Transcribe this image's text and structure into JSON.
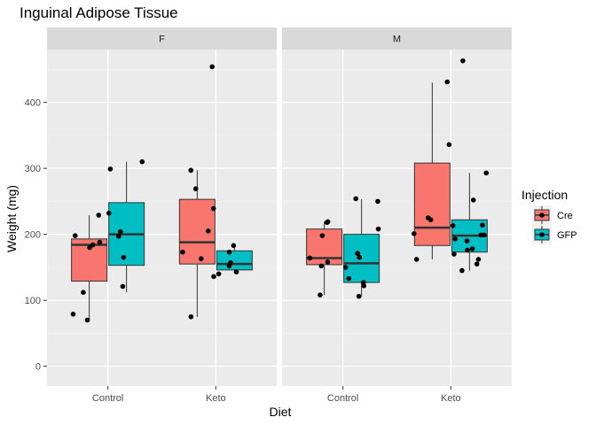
{
  "chart_data": {
    "type": "boxplot",
    "title": "Inguinal Adipose Tissue",
    "xlabel": "Diet",
    "ylabel": "Weight (mg)",
    "ylim": [
      -30,
      480
    ],
    "yticks": [
      0,
      100,
      200,
      300,
      400
    ],
    "categories": [
      "Control",
      "Keto"
    ],
    "facets": [
      "F",
      "M"
    ],
    "legend": {
      "title": "Injection",
      "position": "right"
    },
    "series": [
      {
        "name": "Cre",
        "color": "#F8766D"
      },
      {
        "name": "GFP",
        "color": "#00BFC4"
      }
    ],
    "boxes": [
      {
        "facet": "F",
        "diet": "Control",
        "injection": "Cre",
        "q1": 129,
        "median": 184,
        "q3": 193,
        "whisker_low": 70,
        "whisker_high": 229,
        "points": [
          229,
          198,
          184,
          188,
          180,
          112,
          79,
          70
        ]
      },
      {
        "facet": "F",
        "diet": "Control",
        "injection": "GFP",
        "q1": 153,
        "median": 200,
        "q3": 248,
        "whisker_low": 112,
        "whisker_high": 310,
        "points": [
          310,
          299,
          232,
          204,
          197,
          165,
          121
        ]
      },
      {
        "facet": "F",
        "diet": "Keto",
        "injection": "Cre",
        "q1": 155,
        "median": 188,
        "q3": 253,
        "whisker_low": 75,
        "whisker_high": 297,
        "points": [
          454,
          297,
          269,
          239,
          205,
          173,
          163,
          136,
          75
        ]
      },
      {
        "facet": "F",
        "diet": "Keto",
        "injection": "GFP",
        "q1": 146,
        "median": 155,
        "q3": 175,
        "whisker_low": 143,
        "whisker_high": 183,
        "points": [
          183,
          173,
          157,
          152,
          143,
          140
        ]
      },
      {
        "facet": "M",
        "diet": "Control",
        "injection": "Cre",
        "q1": 154,
        "median": 164,
        "q3": 208,
        "whisker_low": 108,
        "whisker_high": 219,
        "points": [
          219,
          218,
          198,
          164,
          158,
          152,
          108
        ]
      },
      {
        "facet": "M",
        "diet": "Control",
        "injection": "GFP",
        "q1": 127,
        "median": 156,
        "q3": 200,
        "whisker_low": 106,
        "whisker_high": 253,
        "points": [
          254,
          250,
          208,
          171,
          165,
          150,
          133,
          127,
          122,
          106
        ]
      },
      {
        "facet": "M",
        "diet": "Keto",
        "injection": "Cre",
        "q1": 183,
        "median": 210,
        "q3": 308,
        "whisker_low": 162,
        "whisker_high": 430,
        "points": [
          431,
          336,
          225,
          222,
          201,
          162
        ]
      },
      {
        "facet": "M",
        "diet": "Keto",
        "injection": "GFP",
        "q1": 173,
        "median": 198,
        "q3": 222,
        "whisker_low": 145,
        "whisker_high": 293,
        "points": [
          463,
          293,
          252,
          213,
          214,
          199,
          199,
          193,
          190,
          178,
          170,
          162,
          155,
          145,
          176
        ]
      }
    ]
  }
}
